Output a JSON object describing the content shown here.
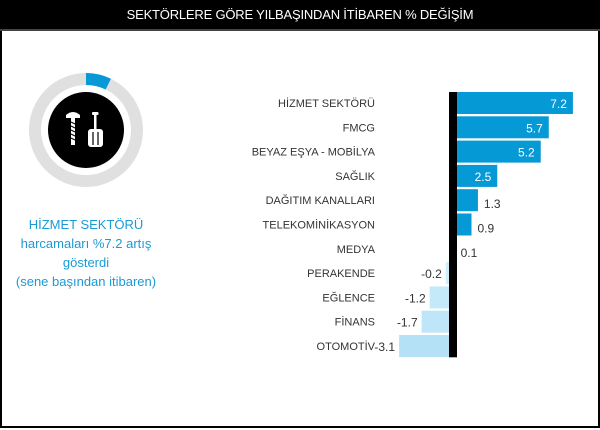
{
  "header": {
    "title": "SEKTÖRLERE GÖRE YILBAŞINDAN İTİBAREN  % DEĞİŞİM"
  },
  "highlight": {
    "icon": "tools-icon",
    "sector": "HİZMET SEKTÖRÜ",
    "line1": "harcamaları %7.2 artış gösterdi",
    "line2": "(sene başından itibaren)",
    "value": 7.2
  },
  "colors": {
    "positive": "#0599d5",
    "negative": "#c4eafa",
    "axis": "#000000",
    "ring": "#e0e0e0",
    "label": "#333333"
  },
  "chart_data": {
    "type": "bar",
    "orientation": "horizontal",
    "title": "SEKTÖRLERE GÖRE YILBAŞINDAN İTİBAREN  % DEĞİŞİM",
    "categories": [
      "HİZMET SEKTÖRÜ",
      "FMCG",
      "BEYAZ EŞYA - MOBİLYA",
      "SAĞLIK",
      "DAĞITIM KANALLARI",
      "TELEKOMİNİKASYON",
      "MEDYA",
      "PERAKENDE",
      "EĞLENCE",
      "FİNANS",
      "OTOMOTİV"
    ],
    "values": [
      7.2,
      5.7,
      5.2,
      2.5,
      1.3,
      0.9,
      0.1,
      -0.2,
      -1.2,
      -1.7,
      -3.1
    ],
    "labels": [
      "7.2",
      "5.7",
      "5.2",
      "2.5",
      "1.3",
      "0.9",
      "0.1",
      "-0.2",
      "-1.2",
      "-1.7",
      "-3.1"
    ],
    "xlim": [
      -3.5,
      7.5
    ],
    "grid": false
  }
}
